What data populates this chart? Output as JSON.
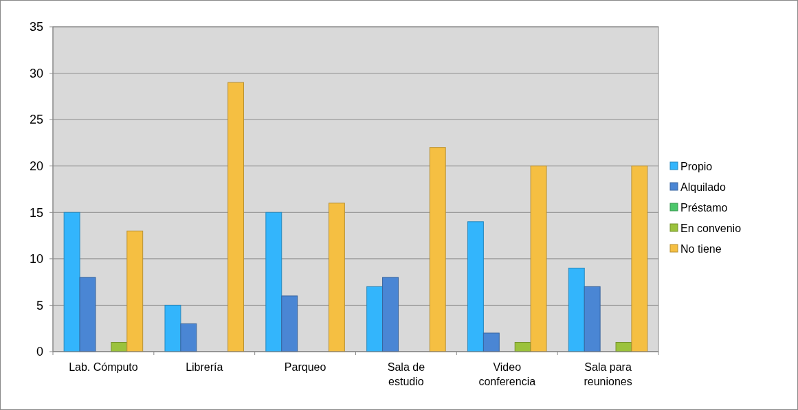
{
  "chart_data": {
    "type": "bar",
    "categories": [
      "Lab. Cómputo",
      "Librería",
      "Parqueo",
      "Sala de estudio",
      "Video conferencia",
      "Sala para reuniones"
    ],
    "series": [
      {
        "name": "Propio",
        "color": "#33b5fc",
        "values": [
          15,
          5,
          15,
          7,
          14,
          9
        ]
      },
      {
        "name": "Alquilado",
        "color": "#4a86d4",
        "values": [
          8,
          3,
          6,
          8,
          2,
          7
        ]
      },
      {
        "name": "Préstamo",
        "color": "#4cc76b",
        "values": [
          0,
          0,
          0,
          0,
          0,
          0
        ]
      },
      {
        "name": "En convenio",
        "color": "#9bc23c",
        "values": [
          1,
          0,
          0,
          0,
          1,
          1
        ]
      },
      {
        "name": "No tiene",
        "color": "#f5bf42",
        "values": [
          13,
          29,
          16,
          22,
          20,
          20
        ]
      }
    ],
    "ylim": [
      0,
      35
    ],
    "yticks": [
      0,
      5,
      10,
      15,
      20,
      25,
      30,
      35
    ],
    "grid": "y",
    "legend": "right"
  }
}
